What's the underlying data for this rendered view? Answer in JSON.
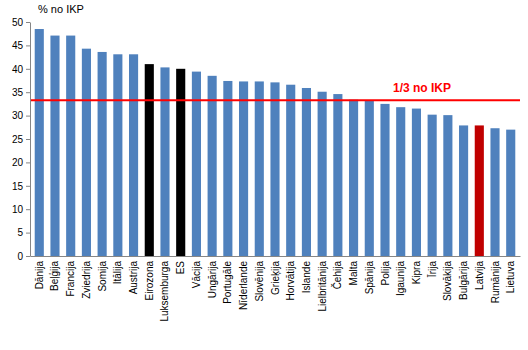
{
  "chart_data": {
    "type": "bar",
    "y_label": "% no IKP",
    "categories": [
      "Dānija",
      "Beļģija",
      "Francija",
      "Zviedrija",
      "Somija",
      "Itālija",
      "Austrija",
      "Eirozona",
      "Luksemburga",
      "ES",
      "Vācija",
      "Ungārija",
      "Portugāle",
      "Nīderlande",
      "Slovēnija",
      "Grieķija",
      "Horvātija",
      "Islande",
      "Lielbritānija",
      "Čehija",
      "Malta",
      "Spānija",
      "Polija",
      "Igaunija",
      "Kipra",
      "Īrija",
      "Slovākija",
      "Bulgārija",
      "Latvija",
      "Rumānija",
      "Lietuva"
    ],
    "values": [
      48.5,
      47.1,
      47.1,
      44.3,
      43.6,
      43.1,
      43.1,
      41.0,
      40.3,
      40.0,
      39.4,
      38.5,
      37.4,
      37.3,
      37.3,
      37.1,
      36.6,
      35.9,
      35.1,
      34.6,
      33.4,
      33.2,
      32.5,
      31.8,
      31.5,
      30.2,
      30.1,
      27.9,
      27.9,
      27.3,
      27.0
    ],
    "colors": [
      "#4f81bd",
      "#4f81bd",
      "#4f81bd",
      "#4f81bd",
      "#4f81bd",
      "#4f81bd",
      "#4f81bd",
      "#000000",
      "#4f81bd",
      "#000000",
      "#4f81bd",
      "#4f81bd",
      "#4f81bd",
      "#4f81bd",
      "#4f81bd",
      "#4f81bd",
      "#4f81bd",
      "#4f81bd",
      "#4f81bd",
      "#4f81bd",
      "#4f81bd",
      "#4f81bd",
      "#4f81bd",
      "#4f81bd",
      "#4f81bd",
      "#4f81bd",
      "#4f81bd",
      "#4f81bd",
      "#c00000",
      "#4f81bd",
      "#4f81bd"
    ],
    "ylim": [
      0,
      50
    ],
    "yticks": [
      0,
      5,
      10,
      15,
      20,
      25,
      30,
      35,
      40,
      45,
      50
    ],
    "grid": false,
    "annotations": [
      {
        "text": "1/3 no IKP",
        "value": 33.3,
        "color": "#ff0000"
      }
    ]
  }
}
